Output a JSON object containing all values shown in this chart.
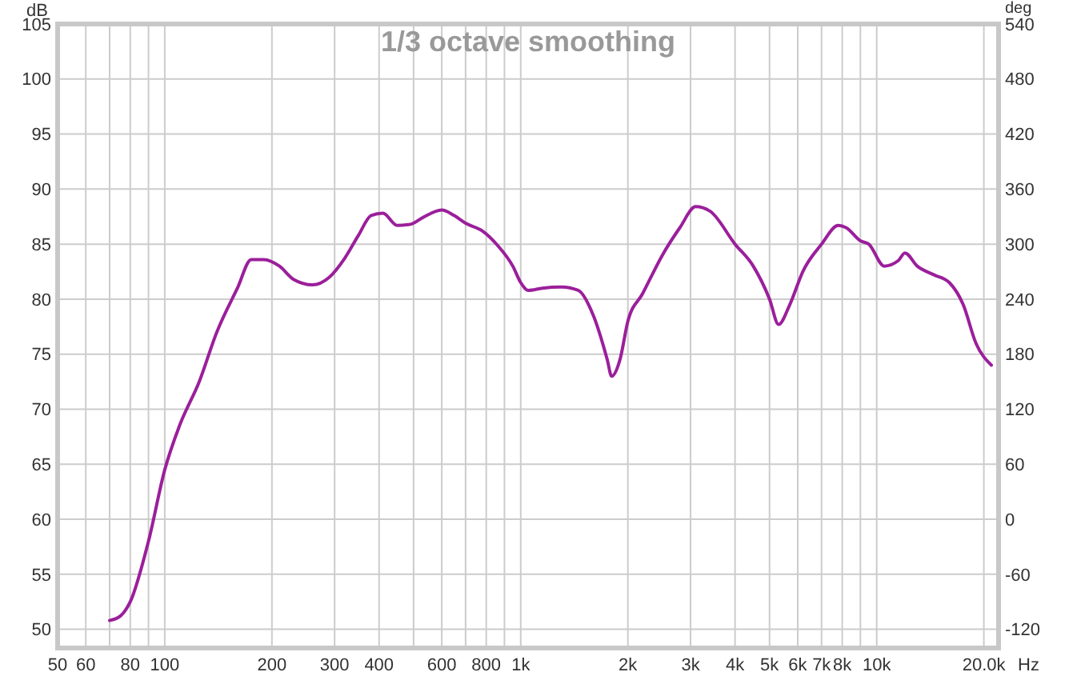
{
  "chart_data": {
    "type": "line",
    "title": "1/3 octave smoothing",
    "xlabel": "Hz",
    "ylabel": "dB",
    "y2label": "deg",
    "x": [
      70,
      75,
      80,
      90,
      100,
      110,
      125,
      140,
      160,
      175,
      190,
      210,
      230,
      260,
      290,
      320,
      350,
      380,
      410,
      450,
      490,
      530,
      600,
      650,
      700,
      780,
      860,
      950,
      1000,
      1050,
      1150,
      1300,
      1450,
      1600,
      1750,
      1800,
      1900,
      2000,
      2200,
      2500,
      2800,
      3100,
      3400,
      4000,
      4500,
      5000,
      5300,
      5700,
      6200,
      7000,
      7800,
      8200,
      9000,
      9500,
      10500,
      11500,
      12000,
      13000,
      14500,
      16000,
      17500,
      19000,
      21000
    ],
    "series": [
      {
        "color": "#9b1f9b",
        "values": [
          50.8,
          51.2,
          52.5,
          58,
          64.5,
          68.5,
          72.5,
          77,
          81,
          83.6,
          83.6,
          83,
          81.8,
          81.3,
          82,
          83.7,
          85.8,
          87.6,
          87.8,
          86.7,
          86.8,
          87.4,
          88.1,
          87.6,
          86.9,
          86.2,
          84.9,
          83,
          81.5,
          80.8,
          81,
          81.1,
          80.8,
          78.5,
          74.5,
          73,
          74.5,
          78,
          80.5,
          84,
          86.5,
          88.4,
          88,
          85,
          83,
          80,
          77.7,
          79.5,
          82.5,
          85,
          86.7,
          86.5,
          85.3,
          85,
          83,
          83.5,
          84.2,
          83,
          82.2,
          81.5,
          79.5,
          76,
          74
        ]
      }
    ],
    "log": "x",
    "grid": true,
    "marker": "none",
    "line_style": "solid",
    "xlim": [
      50,
      22000
    ],
    "xticks": [
      50,
      60,
      {
        "value": 70,
        "label": null
      },
      80,
      {
        "value": 90,
        "label": null
      },
      100,
      200,
      300,
      400,
      {
        "value": 500,
        "label": null
      },
      600,
      {
        "value": 700,
        "label": null
      },
      800,
      {
        "value": 900,
        "label": null
      },
      {
        "value": 1000,
        "label": "1k"
      },
      {
        "value": 2000,
        "label": "2k"
      },
      {
        "value": 3000,
        "label": "3k"
      },
      {
        "value": 4000,
        "label": "4k"
      },
      {
        "value": 5000,
        "label": "5k"
      },
      {
        "value": 6000,
        "label": "6k"
      },
      {
        "value": 7000,
        "label": "7k"
      },
      {
        "value": 8000,
        "label": "8k"
      },
      {
        "value": 9000,
        "label": null
      },
      {
        "value": 10000,
        "label": "10k"
      },
      {
        "value": 20000,
        "label": "20.0k"
      }
    ],
    "ylim": [
      48.3,
      105
    ],
    "yticks": [
      50,
      55,
      60,
      65,
      70,
      75,
      80,
      85,
      90,
      95,
      100,
      105
    ],
    "y2lim": [
      -140.4,
      540
    ],
    "y2ticks": [
      -120,
      -60,
      0,
      60,
      120,
      180,
      240,
      300,
      360,
      420,
      480,
      540
    ]
  }
}
